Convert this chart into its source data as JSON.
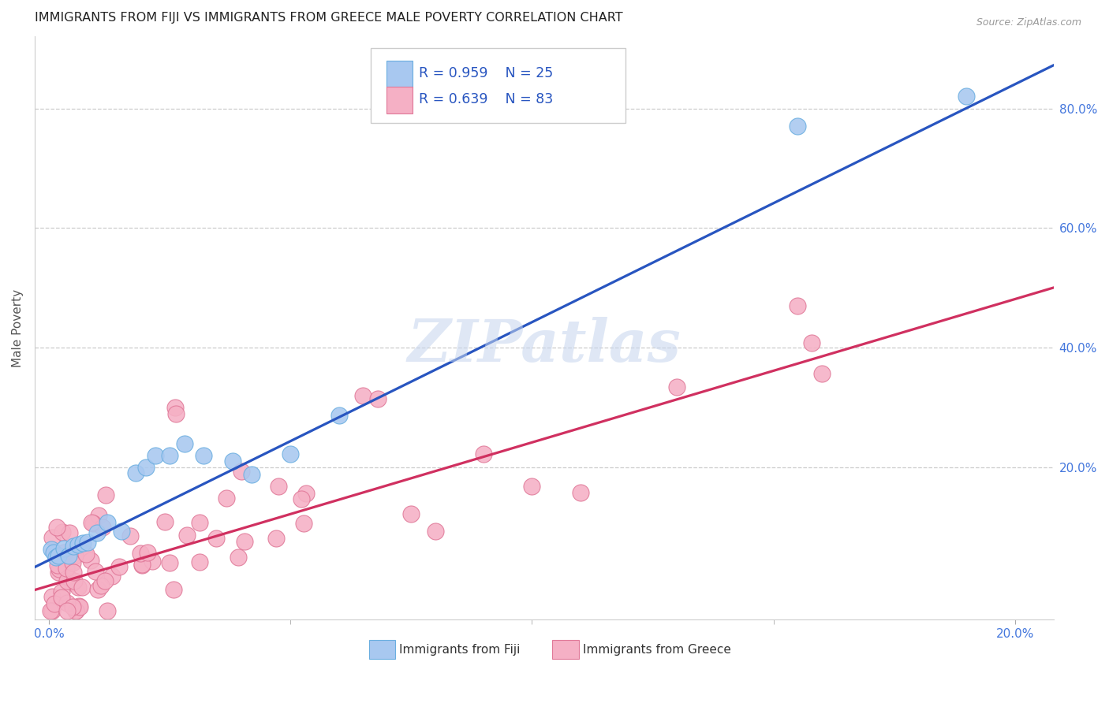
{
  "title": "IMMIGRANTS FROM FIJI VS IMMIGRANTS FROM GREECE MALE POVERTY CORRELATION CHART",
  "source": "Source: ZipAtlas.com",
  "ylabel": "Male Poverty",
  "xlim": [
    -0.003,
    0.208
  ],
  "ylim": [
    -0.055,
    0.92
  ],
  "right_yticks": [
    0.2,
    0.4,
    0.6,
    0.8
  ],
  "xtick_positions": [
    0.0,
    0.2
  ],
  "xtick_labels": [
    "0.0%",
    "20.0%"
  ],
  "fiji_color": "#a8c8f0",
  "fiji_edge_color": "#6aaee0",
  "greece_color": "#f5b0c5",
  "greece_edge_color": "#e07898",
  "fiji_line_color": "#2855c0",
  "greece_line_color": "#d03060",
  "fiji_R": 0.959,
  "fiji_N": 25,
  "greece_R": 0.639,
  "greece_N": 83,
  "fiji_line_x0": -0.005,
  "fiji_line_y0": 0.025,
  "fiji_line_x1": 0.21,
  "fiji_line_y1": 0.88,
  "greece_line_x0": -0.005,
  "greece_line_y0": -0.01,
  "greece_line_x1": 0.21,
  "greece_line_y1": 0.505,
  "watermark": "ZIPatlas",
  "watermark_color": "#c5d5ee",
  "background_color": "#ffffff",
  "grid_color": "#cccccc"
}
